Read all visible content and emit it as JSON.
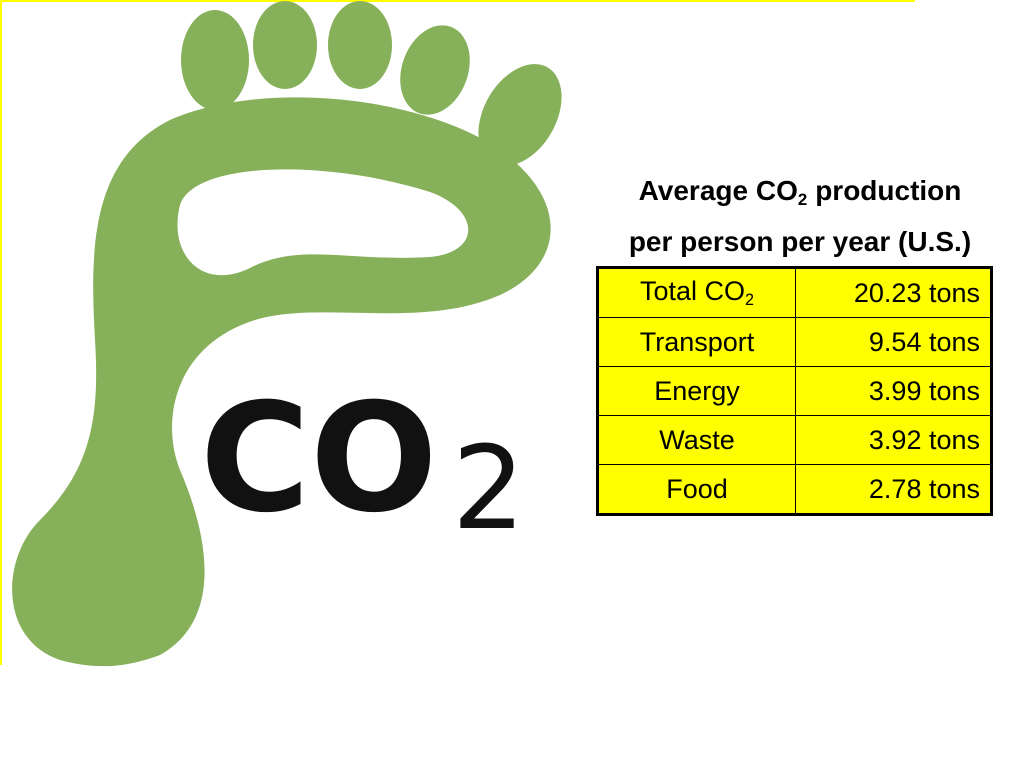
{
  "logo": {
    "text": "CO",
    "subscript": "2"
  },
  "title": {
    "text": "Average CO",
    "subscript": "2",
    "rest": "production",
    "line2": "per person per year (U.S.)"
  },
  "table": {
    "rows": [
      [
        {
          "text": "Total CO",
          "subscript": "2"
        },
        "20.23 tons"
      ],
      [
        {
          "text": "Transport"
        },
        "9.54 tons"
      ],
      [
        {
          "text": "Energy"
        },
        "3.99 tons"
      ],
      [
        {
          "text": "Waste"
        },
        "3.92 tons"
      ],
      [
        {
          "text": "Food"
        },
        "2.78 tons"
      ]
    ]
  }
}
